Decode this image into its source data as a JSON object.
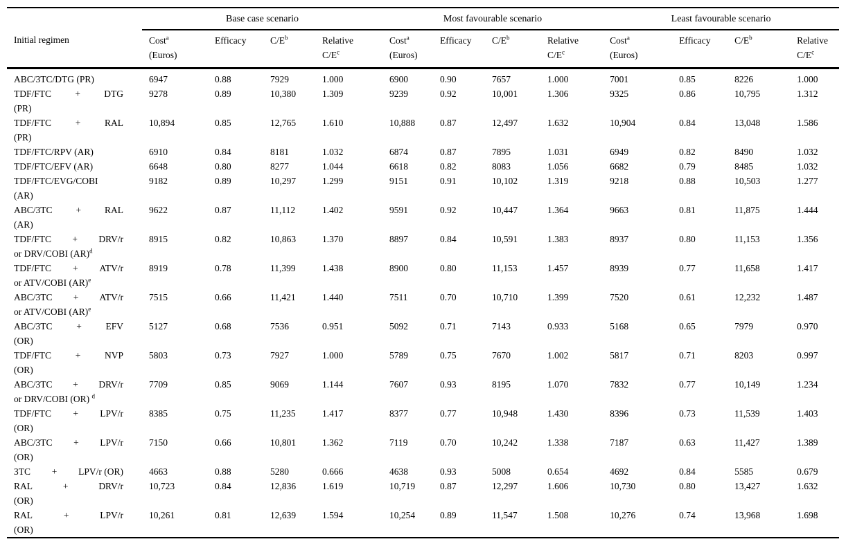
{
  "page": {
    "background": "#ffffff",
    "text_color": "#000000",
    "rule_color": "#000000"
  },
  "table": {
    "first_col_header": "Initial regimen",
    "groups": [
      {
        "label": "Base case scenario"
      },
      {
        "label": "Most favourable scenario"
      },
      {
        "label": "Least favourable scenario"
      }
    ],
    "col_headers": [
      {
        "key": "cost",
        "line1": "Cost",
        "line1_sup": "a",
        "line2": "(Euros)",
        "line2_sup": ""
      },
      {
        "key": "efficacy",
        "line1": "Efficacy",
        "line1_sup": "",
        "line2": "",
        "line2_sup": ""
      },
      {
        "key": "c-e",
        "line1": "C/E",
        "line1_sup": "b",
        "line2": "",
        "line2_sup": ""
      },
      {
        "key": "relative-c-e",
        "line1": "Relative",
        "line1_sup": "",
        "line2": "C/E",
        "line2_sup": "c"
      }
    ],
    "rows": [
      {
        "regimen": {
          "line1": "ABC/3TC/DTG (PR)"
        },
        "values": [
          "6947",
          "0.88",
          "7929",
          "1.000",
          "6900",
          "0.90",
          "7657",
          "1.000",
          "7001",
          "0.85",
          "8226",
          "1.000"
        ]
      },
      {
        "regimen": {
          "parts": [
            "TDF/FTC",
            "+",
            "DTG"
          ],
          "line2": "(PR)"
        },
        "values": [
          "9278",
          "0.89",
          "10,380",
          "1.309",
          "9239",
          "0.92",
          "10,001",
          "1.306",
          "9325",
          "0.86",
          "10,795",
          "1.312"
        ]
      },
      {
        "regimen": {
          "parts": [
            "TDF/FTC",
            "+",
            "RAL"
          ],
          "line2": "(PR)"
        },
        "values": [
          "10,894",
          "0.85",
          "12,765",
          "1.610",
          "10,888",
          "0.87",
          "12,497",
          "1.632",
          "10,904",
          "0.84",
          "13,048",
          "1.586"
        ]
      },
      {
        "regimen": {
          "line1": "TDF/FTC/RPV (AR)"
        },
        "values": [
          "6910",
          "0.84",
          "8181",
          "1.032",
          "6874",
          "0.87",
          "7895",
          "1.031",
          "6949",
          "0.82",
          "8490",
          "1.032"
        ]
      },
      {
        "regimen": {
          "line1": "TDF/FTC/EFV (AR)"
        },
        "values": [
          "6648",
          "0.80",
          "8277",
          "1.044",
          "6618",
          "0.82",
          "8083",
          "1.056",
          "6682",
          "0.79",
          "8485",
          "1.032"
        ]
      },
      {
        "regimen": {
          "line1": "TDF/FTC/EVG/COBI",
          "line2": "(AR)"
        },
        "values": [
          "9182",
          "0.89",
          "10,297",
          "1.299",
          "9151",
          "0.91",
          "10,102",
          "1.319",
          "9218",
          "0.88",
          "10,503",
          "1.277"
        ]
      },
      {
        "regimen": {
          "parts": [
            "ABC/3TC",
            "+",
            "RAL"
          ],
          "line2": "(AR)"
        },
        "values": [
          "9622",
          "0.87",
          "11,112",
          "1.402",
          "9591",
          "0.92",
          "10,447",
          "1.364",
          "9663",
          "0.81",
          "11,875",
          "1.444"
        ]
      },
      {
        "regimen": {
          "parts": [
            "TDF/FTC",
            "+",
            "DRV/r"
          ],
          "line2": "or DRV/COBI (AR)",
          "line2_sup": "d"
        },
        "values": [
          "8915",
          "0.82",
          "10,863",
          "1.370",
          "8897",
          "0.84",
          "10,591",
          "1.383",
          "8937",
          "0.80",
          "11,153",
          "1.356"
        ]
      },
      {
        "regimen": {
          "parts": [
            "TDF/FTC",
            "+",
            "ATV/r"
          ],
          "line2": "or ATV/COBI (AR)",
          "line2_sup": "e"
        },
        "values": [
          "8919",
          "0.78",
          "11,399",
          "1.438",
          "8900",
          "0.80",
          "11,153",
          "1.457",
          "8939",
          "0.77",
          "11,658",
          "1.417"
        ]
      },
      {
        "regimen": {
          "parts": [
            "ABC/3TC",
            "+",
            "ATV/r"
          ],
          "line2": "or ATV/COBI (AR)",
          "line2_sup": "e"
        },
        "values": [
          "7515",
          "0.66",
          "11,421",
          "1.440",
          "7511",
          "0.70",
          "10,710",
          "1.399",
          "7520",
          "0.61",
          "12,232",
          "1.487"
        ]
      },
      {
        "regimen": {
          "parts": [
            "ABC/3TC",
            "+",
            "EFV"
          ],
          "line2": "(OR)"
        },
        "values": [
          "5127",
          "0.68",
          "7536",
          "0.951",
          "5092",
          "0.71",
          "7143",
          "0.933",
          "5168",
          "0.65",
          "7979",
          "0.970"
        ]
      },
      {
        "regimen": {
          "parts": [
            "TDF/FTC",
            "+",
            "NVP"
          ],
          "line2": "(OR)"
        },
        "values": [
          "5803",
          "0.73",
          "7927",
          "1.000",
          "5789",
          "0.75",
          "7670",
          "1.002",
          "5817",
          "0.71",
          "8203",
          "0.997"
        ]
      },
      {
        "regimen": {
          "parts": [
            "ABC/3TC",
            "+",
            "DRV/r"
          ],
          "line2": "or DRV/COBI (OR) ",
          "line2_sup": "d"
        },
        "values": [
          "7709",
          "0.85",
          "9069",
          "1.144",
          "7607",
          "0.93",
          "8195",
          "1.070",
          "7832",
          "0.77",
          "10,149",
          "1.234"
        ]
      },
      {
        "regimen": {
          "parts": [
            "TDF/FTC",
            "+",
            "LPV/r"
          ],
          "line2": "(OR)"
        },
        "values": [
          "8385",
          "0.75",
          "11,235",
          "1.417",
          "8377",
          "0.77",
          "10,948",
          "1.430",
          "8396",
          "0.73",
          "11,539",
          "1.403"
        ]
      },
      {
        "regimen": {
          "parts": [
            "ABC/3TC",
            "+",
            "LPV/r"
          ],
          "line2": "(OR)"
        },
        "values": [
          "7150",
          "0.66",
          "10,801",
          "1.362",
          "7119",
          "0.70",
          "10,242",
          "1.338",
          "7187",
          "0.63",
          "11,427",
          "1.389"
        ]
      },
      {
        "regimen": {
          "parts": [
            "3TC",
            "+",
            "LPV/r (OR)"
          ]
        },
        "values": [
          "4663",
          "0.88",
          "5280",
          "0.666",
          "4638",
          "0.93",
          "5008",
          "0.654",
          "4692",
          "0.84",
          "5585",
          "0.679"
        ]
      },
      {
        "regimen": {
          "parts": [
            "RAL",
            "+",
            "DRV/r"
          ],
          "line2": "(OR)"
        },
        "values": [
          "10,723",
          "0.84",
          "12,836",
          "1.619",
          "10,719",
          "0.87",
          "12,297",
          "1.606",
          "10,730",
          "0.80",
          "13,427",
          "1.632"
        ]
      },
      {
        "regimen": {
          "parts": [
            "RAL",
            "+",
            "LPV/r"
          ],
          "line2": "(OR)"
        },
        "values": [
          "10,261",
          "0.81",
          "12,639",
          "1.594",
          "10,254",
          "0.89",
          "11,547",
          "1.508",
          "10,276",
          "0.74",
          "13,968",
          "1.698"
        ]
      }
    ]
  }
}
